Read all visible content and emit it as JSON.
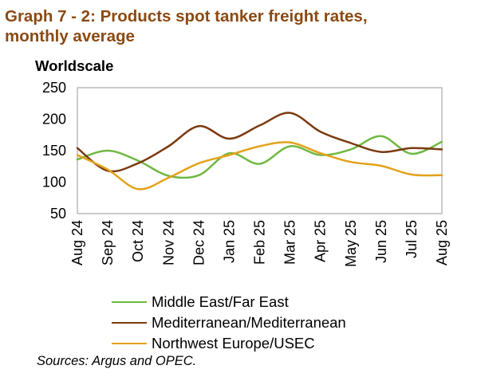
{
  "title_line1": "Graph 7 - 2: Products spot tanker freight rates,",
  "title_line2": "monthly average",
  "source": "Sources: Argus and OPEC.",
  "chart_data": {
    "type": "line",
    "title": "Graph 7 - 2: Products spot tanker freight rates, monthly average",
    "ylabel": "Worldscale",
    "xlabel": "",
    "ylim": [
      50,
      250
    ],
    "yticks": [
      50,
      100,
      150,
      200,
      250
    ],
    "grid": false,
    "legend_position": "bottom",
    "smooth": true,
    "categories": [
      "Aug 24",
      "Sep 24",
      "Oct 24",
      "Nov 24",
      "Dec 24",
      "Jan 25",
      "Feb 25",
      "Mar 25",
      "Apr 25",
      "May 25",
      "Jun 25",
      "Jul 25",
      "Aug 25"
    ],
    "series": [
      {
        "name": "Middle East/Far East",
        "color": "#70B842",
        "values": [
          136,
          150,
          134,
          110,
          111,
          146,
          129,
          157,
          143,
          152,
          173,
          145,
          164
        ]
      },
      {
        "name": "Mediterranean/Mediterranean",
        "color": "#7B3A10",
        "values": [
          154,
          118,
          130,
          157,
          189,
          169,
          190,
          210,
          180,
          162,
          148,
          154,
          152
        ]
      },
      {
        "name": "Northwest Europe/USEC",
        "color": "#E3A21A",
        "values": [
          143,
          120,
          89,
          107,
          130,
          143,
          157,
          163,
          146,
          132,
          126,
          112,
          111
        ]
      }
    ]
  }
}
